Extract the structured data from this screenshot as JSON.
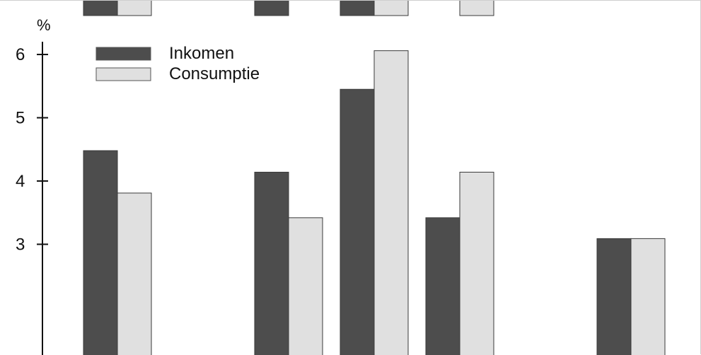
{
  "chart_data": {
    "type": "bar",
    "y_unit": "%",
    "categories": [
      "",
      "",
      "",
      "",
      "",
      "",
      ""
    ],
    "series": [
      {
        "name": "Inkomen",
        "color": "#4d4d4d",
        "values": [
          4.48,
          null,
          4.14,
          5.45,
          3.42,
          null,
          3.09
        ]
      },
      {
        "name": "Consumptie",
        "color": "#e0e0e0",
        "values": [
          3.81,
          null,
          3.42,
          6.06,
          4.14,
          null,
          3.09
        ]
      }
    ],
    "y_ticks": [
      3,
      4,
      5,
      6
    ],
    "ylim_visible": [
      1.25,
      6.85
    ],
    "grid": false,
    "legend_position": "top-left",
    "clipped_top_bars": [
      {
        "category_index": 0,
        "series": [
          "Inkomen",
          "Consumptie"
        ]
      },
      {
        "category_index": 2,
        "series": [
          "Inkomen"
        ]
      },
      {
        "category_index": 3,
        "series": [
          "Inkomen",
          "Consumptie"
        ]
      },
      {
        "category_index": 4,
        "series": [
          "Consumptie"
        ]
      }
    ]
  }
}
